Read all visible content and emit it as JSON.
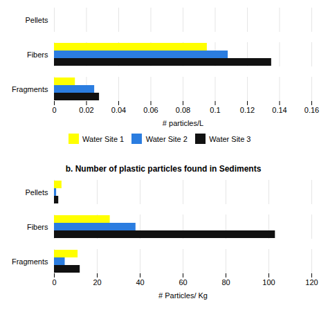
{
  "chart_data": [
    {
      "type": "bar",
      "orientation": "horizontal",
      "categories": [
        "Pellets",
        "Fibers",
        "Fragments"
      ],
      "series": [
        {
          "name": "Water Site 1",
          "color": "#ffff00",
          "values": [
            0,
            0.095,
            0.013
          ]
        },
        {
          "name": "Water Site 2",
          "color": "#2b7de0",
          "values": [
            0,
            0.108,
            0.025
          ]
        },
        {
          "name": "Water Site 3",
          "color": "#111111",
          "values": [
            0,
            0.135,
            0.028
          ]
        }
      ],
      "xlabel": "# particles/L",
      "xlim": [
        0,
        0.16
      ],
      "xticks": [
        0,
        0.02,
        0.04,
        0.06,
        0.08,
        0.1,
        0.12,
        0.14,
        0.16
      ],
      "grid": true,
      "legend": "bottom"
    },
    {
      "type": "bar",
      "orientation": "horizontal",
      "title": "b. Number of plastic particles found in Sediments",
      "categories": [
        "Pellets",
        "Fibers",
        "Fragments"
      ],
      "series": [
        {
          "name": "Water Site 1",
          "color": "#ffff00",
          "values": [
            3.5,
            26,
            11
          ]
        },
        {
          "name": "Water Site 2",
          "color": "#2b7de0",
          "values": [
            1.0,
            38,
            5
          ]
        },
        {
          "name": "Water Site 3",
          "color": "#111111",
          "values": [
            2.0,
            103,
            12
          ]
        }
      ],
      "xlabel": "# Particles/ Kg",
      "xlim": [
        0,
        120
      ],
      "xticks": [
        0,
        20,
        40,
        60,
        80,
        100,
        120
      ],
      "grid": true
    }
  ]
}
